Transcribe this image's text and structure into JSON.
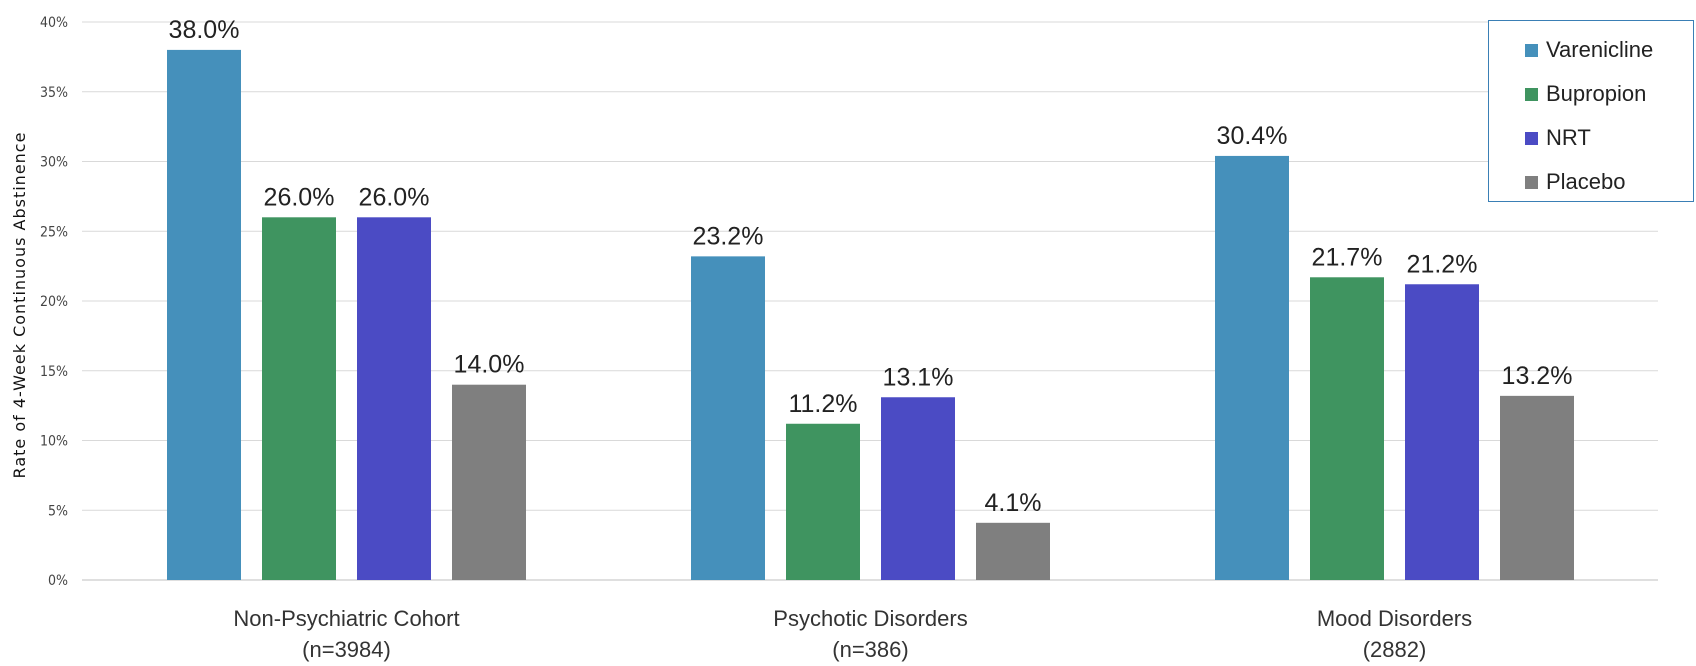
{
  "chart_data": {
    "type": "bar",
    "ylabel": "Rate of 4-Week Continuous Abstinence",
    "ylim": [
      0,
      40
    ],
    "yticks": [
      "0%",
      "5%",
      "10%",
      "15%",
      "20%",
      "25%",
      "30%",
      "35%",
      "40%"
    ],
    "grid": true,
    "legend_position": "top-right",
    "categories": [
      {
        "line1": "Non-Psychiatric Cohort",
        "line2": "(n=3984)"
      },
      {
        "line1": "Psychotic Disorders",
        "line2": "(n=386)"
      },
      {
        "line1": "Mood Disorders",
        "line2": "(2882)"
      }
    ],
    "series": [
      {
        "name": "Varenicline",
        "color": "#4590bb",
        "values": [
          38.0,
          23.2,
          30.4
        ],
        "labels": [
          "38.0%",
          "23.2%",
          "30.4%"
        ]
      },
      {
        "name": "Bupropion",
        "color": "#3f9460",
        "values": [
          26.0,
          11.2,
          21.7
        ],
        "labels": [
          "26.0%",
          "11.2%",
          "21.7%"
        ]
      },
      {
        "name": "NRT",
        "color": "#4b4bc4",
        "values": [
          26.0,
          13.1,
          21.2
        ],
        "labels": [
          "26.0%",
          "13.1%",
          "21.2%"
        ]
      },
      {
        "name": "Placebo",
        "color": "#7f7f7f",
        "values": [
          14.0,
          4.1,
          13.2
        ],
        "labels": [
          "14.0%",
          "4.1%",
          "13.2%"
        ]
      }
    ]
  }
}
